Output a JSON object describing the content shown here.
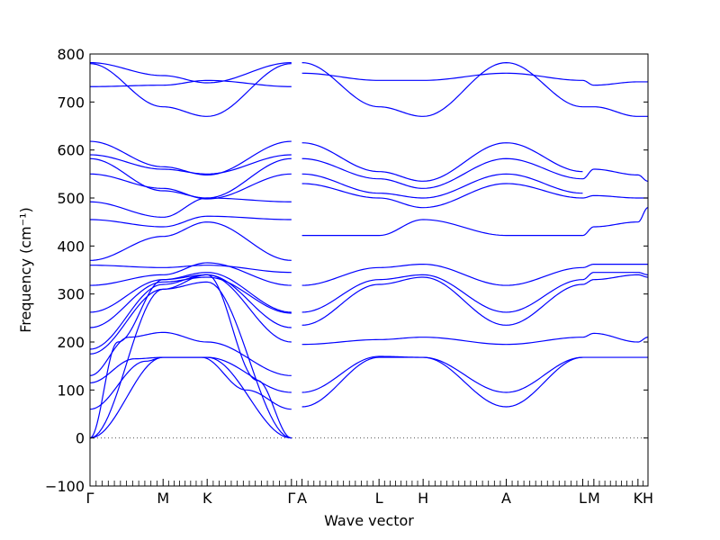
{
  "chart_data": {
    "type": "line",
    "title": "",
    "xlabel": "Wave vector",
    "ylabel": "Frequency (cm⁻¹)",
    "ylim": [
      -100,
      800
    ],
    "yticks": [
      -100,
      0,
      100,
      200,
      300,
      400,
      500,
      600,
      700,
      800
    ],
    "grid": false,
    "line_color": "#0000ff",
    "zero_line_color": "#555555",
    "xlim": [
      0,
      1
    ],
    "symmetry_points": [
      {
        "label": "Γ",
        "x": 0.0
      },
      {
        "label": "M",
        "x": 0.131
      },
      {
        "label": "K",
        "x": 0.21
      },
      {
        "label": "Γ",
        "x": 0.361
      },
      {
        "label": "A",
        "x": 0.38
      },
      {
        "label": "L",
        "x": 0.518
      },
      {
        "label": "H",
        "x": 0.597
      },
      {
        "label": "A",
        "x": 0.746
      },
      {
        "label": "L",
        "x": 0.883
      },
      {
        "label": "M",
        "x": 0.903
      },
      {
        "label": "K",
        "x": 0.982
      },
      {
        "label": "H",
        "x": 1.0
      }
    ],
    "series": [
      {
        "x": [
          0.0,
          0.131,
          0.21,
          0.361
        ],
        "values": [
          0,
          168,
          168,
          0
        ]
      },
      {
        "x": [
          0.0,
          0.131,
          0.21,
          0.361
        ],
        "values": [
          0,
          310,
          325,
          0
        ]
      },
      {
        "x": [
          0.0,
          0.05,
          0.131,
          0.21,
          0.3,
          0.361
        ],
        "values": [
          0,
          200,
          330,
          340,
          120,
          0
        ]
      },
      {
        "x": [
          0.0,
          0.1,
          0.131,
          0.2,
          0.28,
          0.361
        ],
        "values": [
          60,
          160,
          168,
          168,
          100,
          60
        ]
      },
      {
        "x": [
          0.0,
          0.08,
          0.131,
          0.21,
          0.361
        ],
        "values": [
          115,
          165,
          168,
          168,
          95
        ]
      },
      {
        "x": [
          0.0,
          0.07,
          0.131,
          0.21,
          0.361
        ],
        "values": [
          130,
          210,
          220,
          200,
          130
        ]
      },
      {
        "x": [
          0.0,
          0.131,
          0.21,
          0.361
        ],
        "values": [
          175,
          310,
          340,
          200
        ]
      },
      {
        "x": [
          0.0,
          0.131,
          0.21,
          0.361
        ],
        "values": [
          185,
          320,
          340,
          230
        ]
      },
      {
        "x": [
          0.0,
          0.131,
          0.21,
          0.361
        ],
        "values": [
          230,
          325,
          335,
          260
        ]
      },
      {
        "x": [
          0.0,
          0.131,
          0.21,
          0.361
        ],
        "values": [
          262,
          330,
          345,
          262
        ]
      },
      {
        "x": [
          0.0,
          0.131,
          0.21,
          0.361
        ],
        "values": [
          318,
          340,
          365,
          318
        ]
      },
      {
        "x": [
          0.0,
          0.131,
          0.21,
          0.361
        ],
        "values": [
          360,
          355,
          360,
          345
        ]
      },
      {
        "x": [
          0.0,
          0.131,
          0.21,
          0.361
        ],
        "values": [
          370,
          420,
          450,
          370
        ]
      },
      {
        "x": [
          0.0,
          0.131,
          0.21,
          0.361
        ],
        "values": [
          455,
          440,
          462,
          455
        ]
      },
      {
        "x": [
          0.0,
          0.131,
          0.21,
          0.361
        ],
        "values": [
          492,
          460,
          500,
          492
        ]
      },
      {
        "x": [
          0.0,
          0.131,
          0.21,
          0.361
        ],
        "values": [
          550,
          520,
          498,
          550
        ]
      },
      {
        "x": [
          0.0,
          0.131,
          0.21,
          0.361
        ],
        "values": [
          582,
          515,
          500,
          582
        ]
      },
      {
        "x": [
          0.0,
          0.131,
          0.21,
          0.361
        ],
        "values": [
          590,
          560,
          550,
          590
        ]
      },
      {
        "x": [
          0.0,
          0.131,
          0.21,
          0.361
        ],
        "values": [
          618,
          565,
          548,
          618
        ]
      },
      {
        "x": [
          0.0,
          0.131,
          0.21,
          0.361
        ],
        "values": [
          732,
          735,
          745,
          732
        ]
      },
      {
        "x": [
          0.0,
          0.131,
          0.21,
          0.361
        ],
        "values": [
          780,
          690,
          670,
          780
        ]
      },
      {
        "x": [
          0.0,
          0.131,
          0.21,
          0.361
        ],
        "values": [
          782,
          755,
          740,
          782
        ]
      },
      {
        "x": [
          0.38,
          0.518,
          0.597,
          0.746,
          0.883
        ],
        "values": [
          65,
          168,
          168,
          65,
          168
        ]
      },
      {
        "x": [
          0.38,
          0.518,
          0.597,
          0.746,
          0.883
        ],
        "values": [
          95,
          170,
          168,
          95,
          168
        ]
      },
      {
        "x": [
          0.38,
          0.518,
          0.597,
          0.746,
          0.883
        ],
        "values": [
          195,
          205,
          210,
          195,
          210
        ]
      },
      {
        "x": [
          0.38,
          0.518,
          0.597,
          0.746,
          0.883
        ],
        "values": [
          235,
          320,
          335,
          235,
          320
        ]
      },
      {
        "x": [
          0.38,
          0.518,
          0.597,
          0.746,
          0.883
        ],
        "values": [
          262,
          330,
          340,
          262,
          330
        ]
      },
      {
        "x": [
          0.38,
          0.518,
          0.597,
          0.746,
          0.883
        ],
        "values": [
          318,
          355,
          362,
          318,
          355
        ]
      },
      {
        "x": [
          0.38,
          0.518,
          0.597,
          0.746,
          0.883
        ],
        "values": [
          422,
          422,
          455,
          422,
          422
        ]
      },
      {
        "x": [
          0.38,
          0.518,
          0.597,
          0.746,
          0.883
        ],
        "values": [
          530,
          500,
          480,
          530,
          500
        ]
      },
      {
        "x": [
          0.38,
          0.518,
          0.597,
          0.746,
          0.883
        ],
        "values": [
          550,
          510,
          500,
          550,
          510
        ]
      },
      {
        "x": [
          0.38,
          0.518,
          0.597,
          0.746,
          0.883
        ],
        "values": [
          582,
          540,
          520,
          582,
          540
        ]
      },
      {
        "x": [
          0.38,
          0.518,
          0.597,
          0.746,
          0.883
        ],
        "values": [
          615,
          555,
          535,
          615,
          555
        ]
      },
      {
        "x": [
          0.38,
          0.518,
          0.597,
          0.746,
          0.883
        ],
        "values": [
          760,
          745,
          745,
          760,
          745
        ]
      },
      {
        "x": [
          0.38,
          0.518,
          0.597,
          0.746,
          0.883
        ],
        "values": [
          782,
          690,
          670,
          782,
          690
        ]
      },
      {
        "x": [
          0.883,
          0.903,
          0.982,
          1.0
        ],
        "values": [
          168,
          168,
          168,
          168
        ]
      },
      {
        "x": [
          0.883,
          0.903,
          0.982,
          1.0
        ],
        "values": [
          210,
          218,
          200,
          210
        ]
      },
      {
        "x": [
          0.883,
          0.903,
          0.982,
          1.0
        ],
        "values": [
          320,
          330,
          340,
          335
        ]
      },
      {
        "x": [
          0.883,
          0.903,
          0.982,
          1.0
        ],
        "values": [
          330,
          345,
          345,
          340
        ]
      },
      {
        "x": [
          0.883,
          0.903,
          0.982,
          1.0
        ],
        "values": [
          355,
          362,
          362,
          362
        ]
      },
      {
        "x": [
          0.883,
          0.903,
          0.982,
          1.0
        ],
        "values": [
          422,
          440,
          450,
          480
        ]
      },
      {
        "x": [
          0.883,
          0.903,
          0.982,
          1.0
        ],
        "values": [
          500,
          505,
          500,
          500
        ]
      },
      {
        "x": [
          0.883,
          0.903,
          0.982,
          1.0
        ],
        "values": [
          540,
          560,
          548,
          535
        ]
      },
      {
        "x": [
          0.883,
          0.903,
          0.982,
          1.0
        ],
        "values": [
          745,
          735,
          742,
          742
        ]
      },
      {
        "x": [
          0.883,
          0.903,
          0.982,
          1.0
        ],
        "values": [
          690,
          690,
          670,
          670
        ]
      }
    ]
  }
}
